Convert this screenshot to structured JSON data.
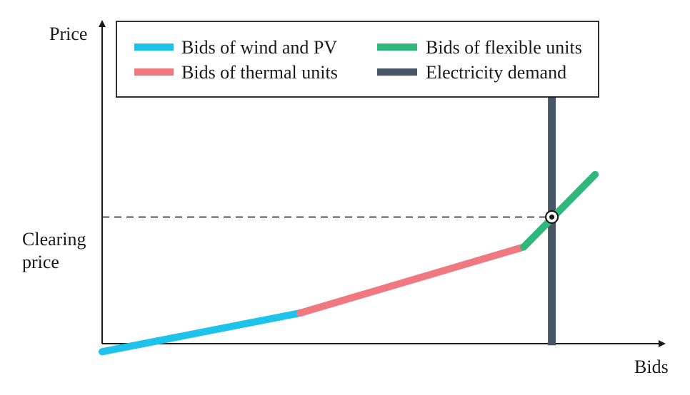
{
  "chart_data": {
    "type": "line",
    "title": "",
    "xlabel": "Bids",
    "ylabel": "Price",
    "xlim": [
      0,
      100
    ],
    "ylim": [
      0,
      100
    ],
    "grid": false,
    "legend_placement": "top",
    "series": [
      {
        "name": "Bids of wind and PV",
        "color": "#1ec3ec",
        "points": [
          [
            0,
            -2.5
          ],
          [
            35.2,
            9.5
          ]
        ]
      },
      {
        "name": "Bids of thermal units",
        "color": "#f07880",
        "points": [
          [
            35.2,
            9.5
          ],
          [
            75.0,
            30.0
          ]
        ]
      },
      {
        "name": "Bids of flexible units",
        "color": "#2fb77c",
        "points": [
          [
            75.0,
            30.0
          ],
          [
            87.7,
            52.5
          ]
        ]
      },
      {
        "name": "Electricity demand",
        "color": "#475666",
        "points": [
          [
            80.0,
            -0.5
          ],
          [
            80.0,
            85.5
          ]
        ]
      }
    ],
    "annotations": {
      "clearing_price_label_line1": "Clearing",
      "clearing_price_label_line2": "price",
      "clearing_price_value": 39.3,
      "clearing_point": [
        80.0,
        39.3
      ]
    }
  }
}
